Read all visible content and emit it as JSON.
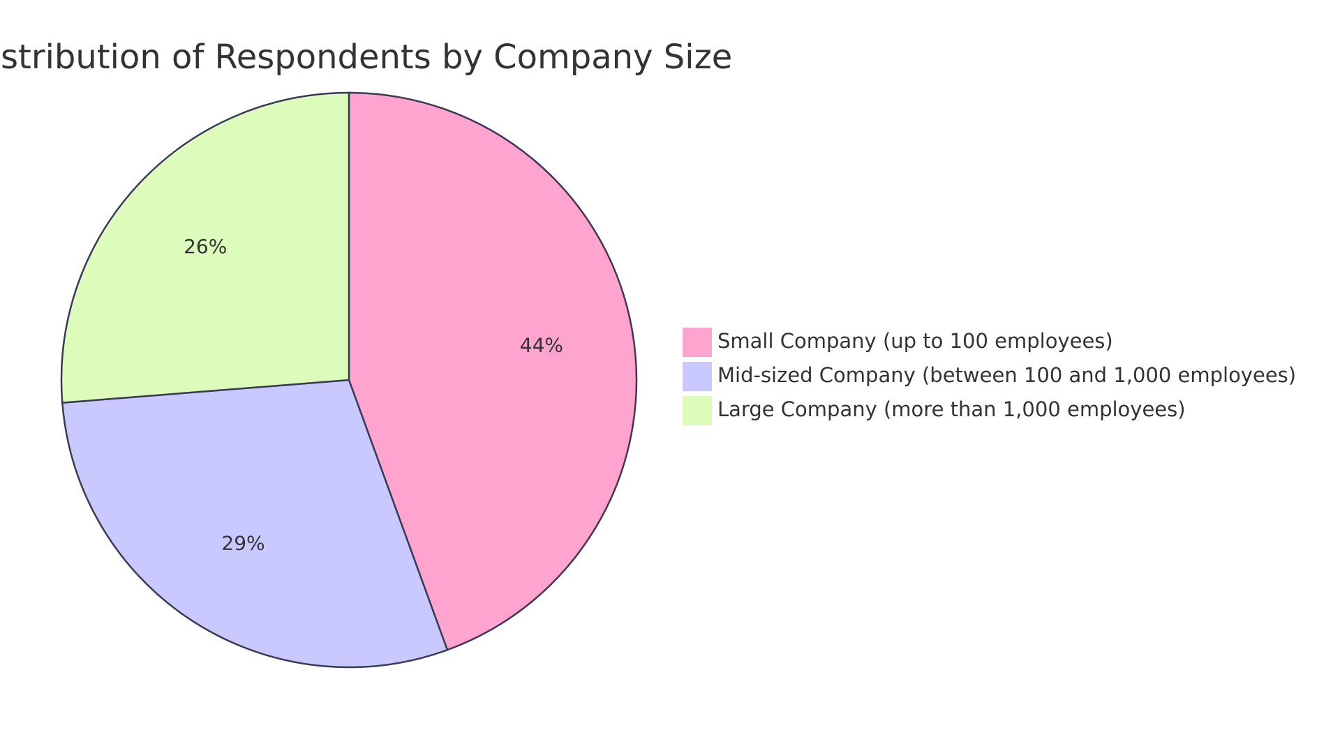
{
  "chart_data": {
    "type": "pie",
    "title": "Distribution of Respondents by Company Size",
    "slices": [
      {
        "label": "Small Company (up to 100 employees)",
        "value": 44,
        "display": "44%",
        "color": "#FFA3CF"
      },
      {
        "label": "Mid-sized Company (between 100 and 1,000 employees)",
        "value": 29,
        "display": "29%",
        "color": "#C9C9FF"
      },
      {
        "label": "Large Company (more than 1,000 employees)",
        "value": 26,
        "display": "26%",
        "color": "#DDFBBB"
      }
    ],
    "start_angle_deg": 0,
    "direction": "clockwise",
    "legend_position": "right",
    "stroke_color": "#3A3A55"
  }
}
